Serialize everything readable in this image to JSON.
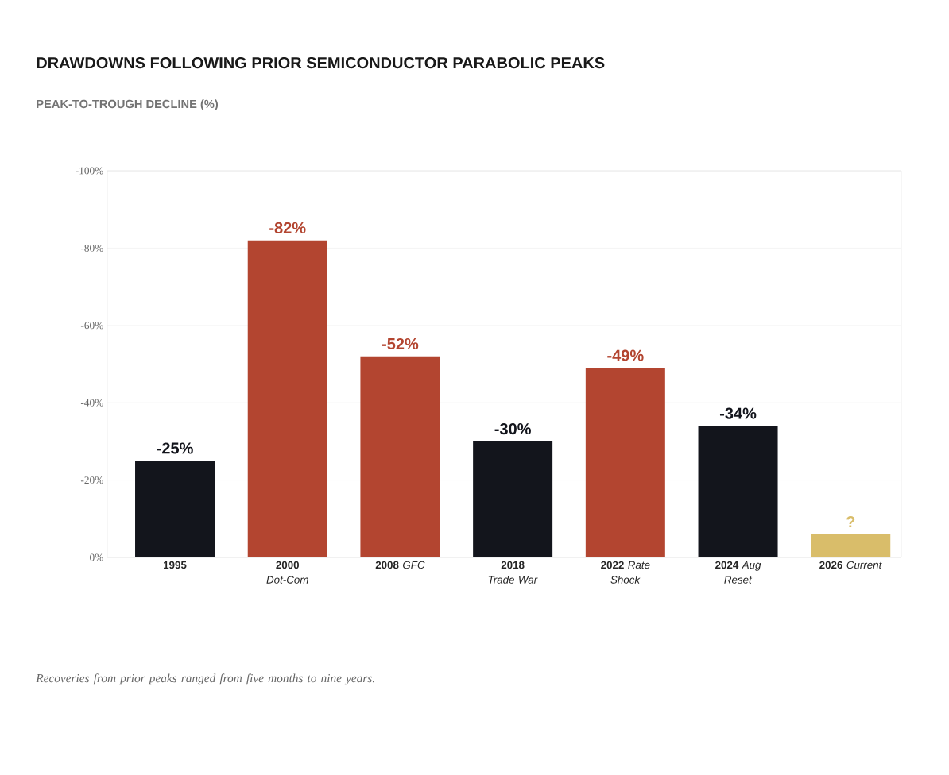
{
  "chart_data": {
    "type": "bar",
    "title": "DRAWDOWNS FOLLOWING PRIOR SEMICONDUCTOR PARABOLIC PEAKS",
    "subtitle": "PEAK-TO-TROUGH DECLINE (%)",
    "categories": [
      "**1995**",
      "**2000** *Dot-Com*",
      "**2008** *GFC*",
      "**2018** *Trade War*",
      "**2022** *Rate Shock*",
      "**2024** *Aug Reset*",
      "**2026** *Current*"
    ],
    "values": [
      -25,
      -82,
      -52,
      -30,
      -49,
      -34,
      -6
    ],
    "colors": [
      "#13151c",
      "#b34530",
      "#b34530",
      "#13151c",
      "#b34530",
      "#13151c",
      "#d9bd6a"
    ],
    "value_labels": [
      "-25%",
      "-82%",
      "-52%",
      "-30%",
      "-49%",
      "-34%",
      "?"
    ],
    "ylim": [
      0,
      -100
    ],
    "yticks": [
      {
        "value": 0,
        "label": "0%"
      },
      {
        "value": -20,
        "label": "-20%"
      },
      {
        "value": -40,
        "label": "-40%"
      },
      {
        "value": -60,
        "label": "-60%"
      },
      {
        "value": -80,
        "label": "-80%"
      },
      {
        "value": -100,
        "label": "-100%"
      }
    ],
    "grid": "y",
    "annotations": [
      "Recoveries from prior peaks ranged from five months to nine years."
    ]
  }
}
